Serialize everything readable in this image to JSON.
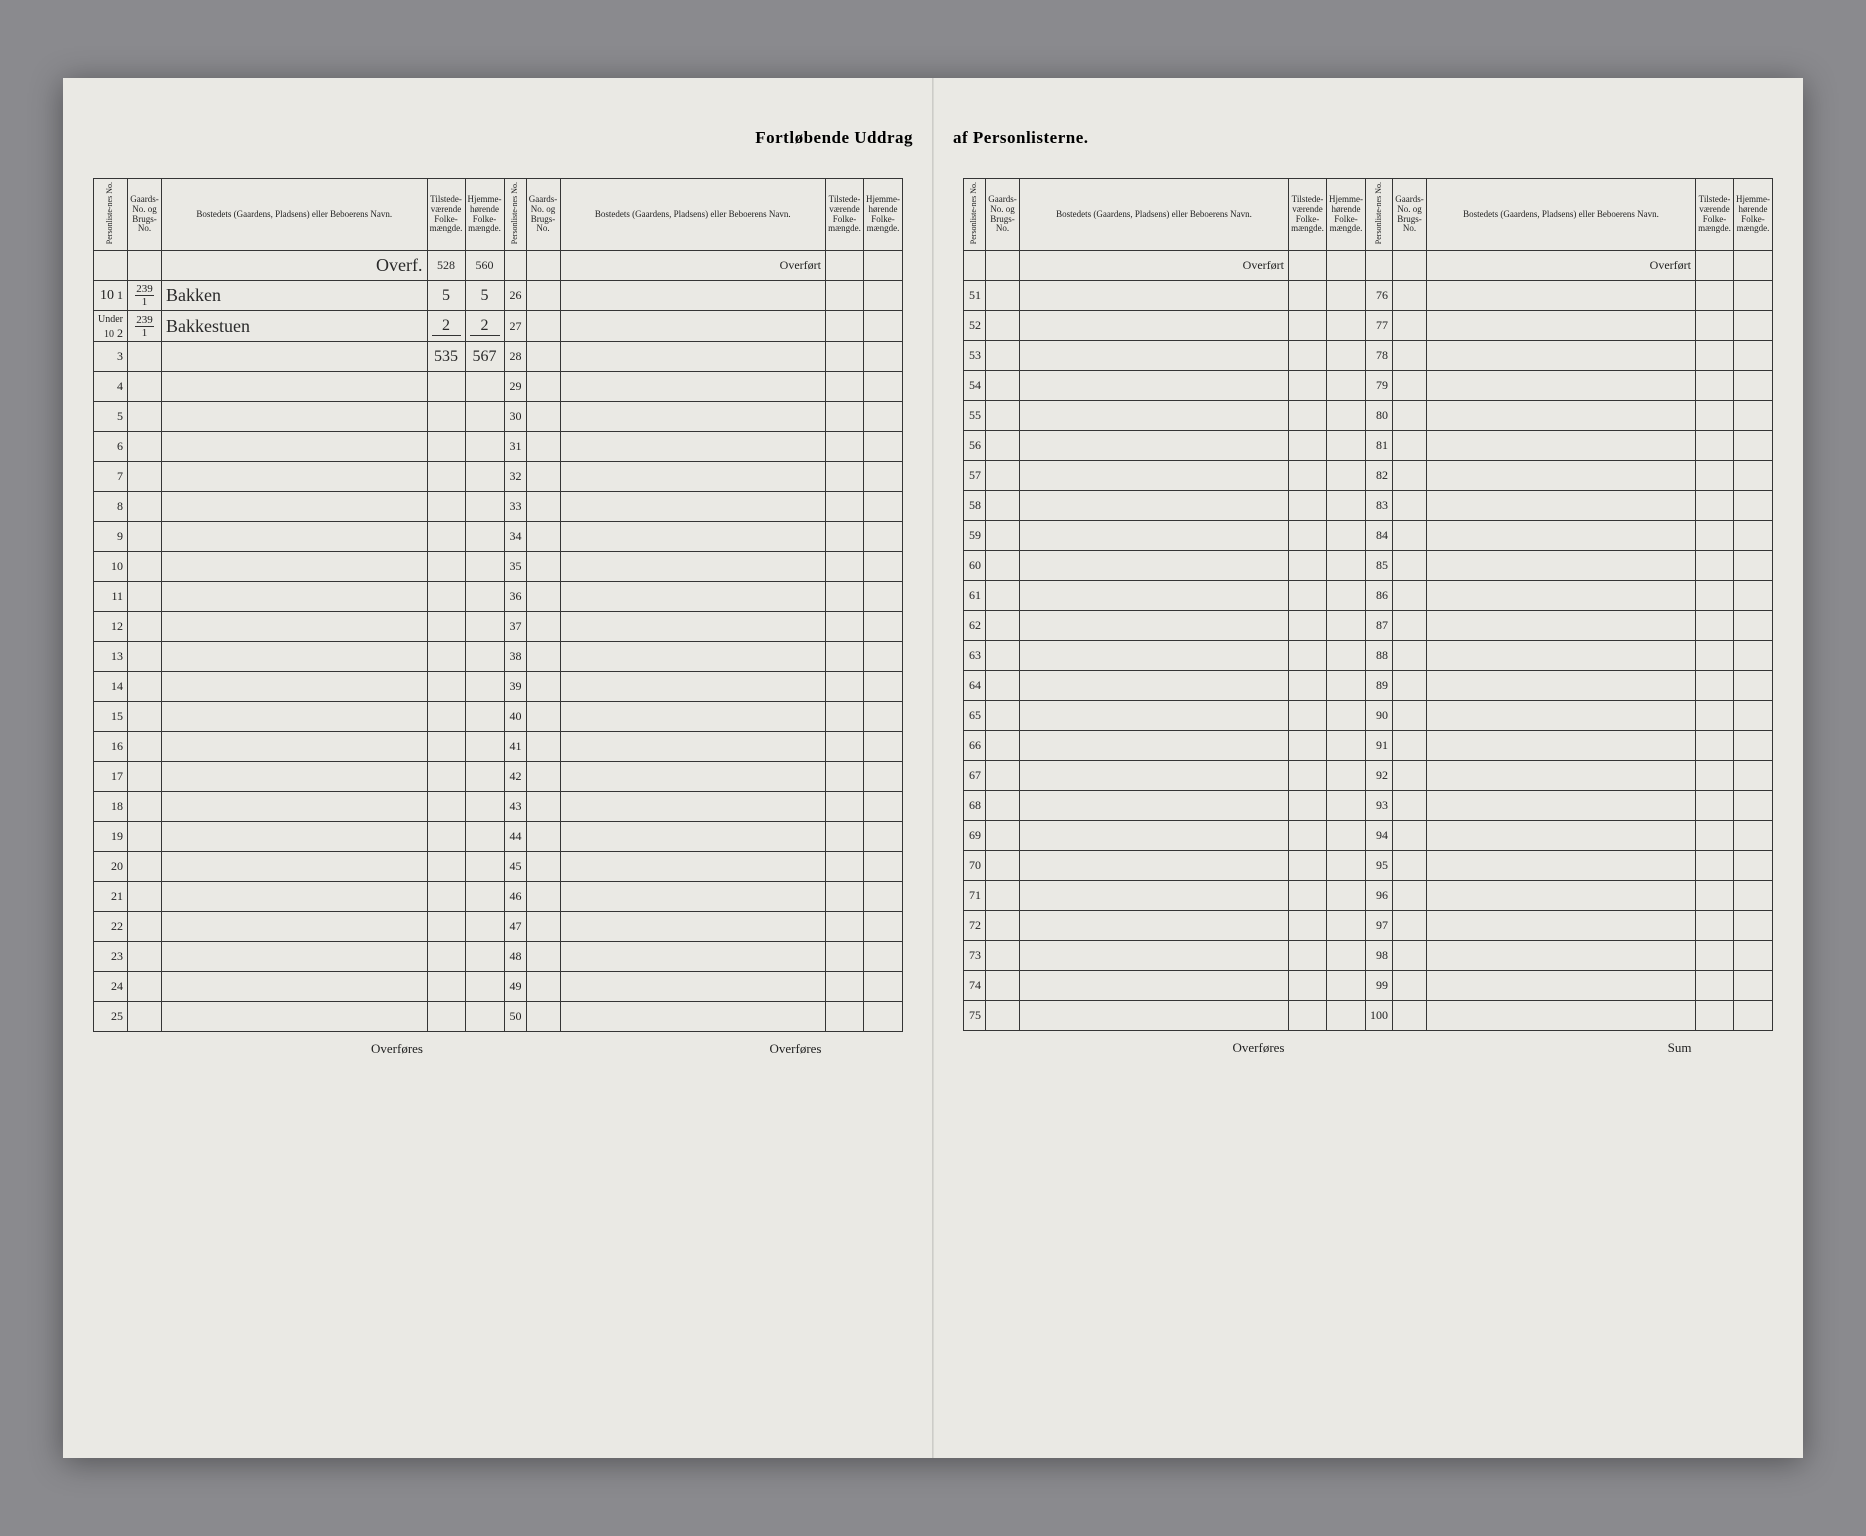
{
  "title_left": "Fortløbende Uddrag",
  "title_right": "af Personlisterne.",
  "headers": {
    "person": "Personliste-nes No.",
    "gaard": "Gaards-No. og Brugs-No.",
    "bosted": "Bostedets (Gaardens, Pladsens) eller Beboerens Navn.",
    "til": "Tilstede-værende Folke-mængde.",
    "hjem": "Hjemme-hørende Folke-mængde."
  },
  "overfort": "Overført",
  "overfores": "Overføres",
  "sum": "Sum",
  "overf": "Overf.",
  "overf_til": "528",
  "overf_hjem": "560",
  "rows": [
    {
      "n": "1",
      "prefix": "10",
      "gaard_top": "239",
      "gaard_bot": "1",
      "bosted": "Bakken",
      "til": "5",
      "hjem": "5"
    },
    {
      "n": "2",
      "prefix": "Under 10",
      "gaard_top": "239",
      "gaard_bot": "1",
      "bosted": "Bakkestuen",
      "til": "2",
      "hjem": "2"
    },
    {
      "n": "3",
      "til_total": "535",
      "hjem_total": "567"
    }
  ],
  "col1": [
    1,
    2,
    3,
    4,
    5,
    6,
    7,
    8,
    9,
    10,
    11,
    12,
    13,
    14,
    15,
    16,
    17,
    18,
    19,
    20,
    21,
    22,
    23,
    24,
    25
  ],
  "col2": [
    26,
    27,
    28,
    29,
    30,
    31,
    32,
    33,
    34,
    35,
    36,
    37,
    38,
    39,
    40,
    41,
    42,
    43,
    44,
    45,
    46,
    47,
    48,
    49,
    50
  ],
  "col3": [
    51,
    52,
    53,
    54,
    55,
    56,
    57,
    58,
    59,
    60,
    61,
    62,
    63,
    64,
    65,
    66,
    67,
    68,
    69,
    70,
    71,
    72,
    73,
    74,
    75
  ],
  "col4": [
    76,
    77,
    78,
    79,
    80,
    81,
    82,
    83,
    84,
    85,
    86,
    87,
    88,
    89,
    90,
    91,
    92,
    93,
    94,
    95,
    96,
    97,
    98,
    99,
    100
  ]
}
